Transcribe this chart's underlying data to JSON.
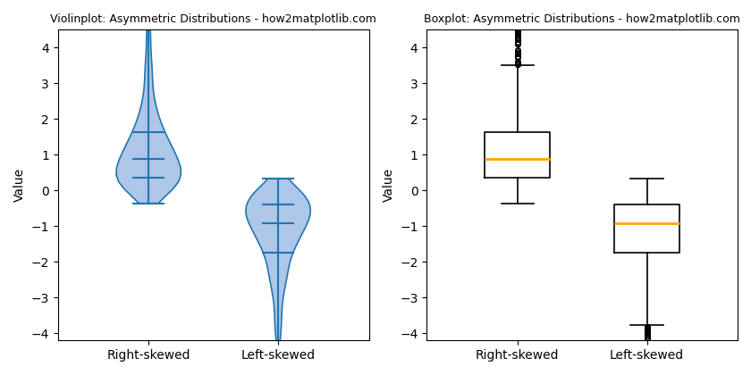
{
  "violin_title": "Violinplot: Asymmetric Distributions - how2matplotlib.com",
  "box_title": "Boxplot: Asymmetric Distributions - how2matplotlib.com",
  "ylabel": "Value",
  "categories": [
    "Right-skewed",
    "Left-skewed"
  ],
  "violin_color": "#aec6e8",
  "violin_line_color": "#2176ae",
  "ylim": [
    -4.2,
    4.5
  ],
  "seed": 42,
  "n_samples": 1000,
  "figsize": [
    8.4,
    4.2
  ],
  "dpi": 100
}
